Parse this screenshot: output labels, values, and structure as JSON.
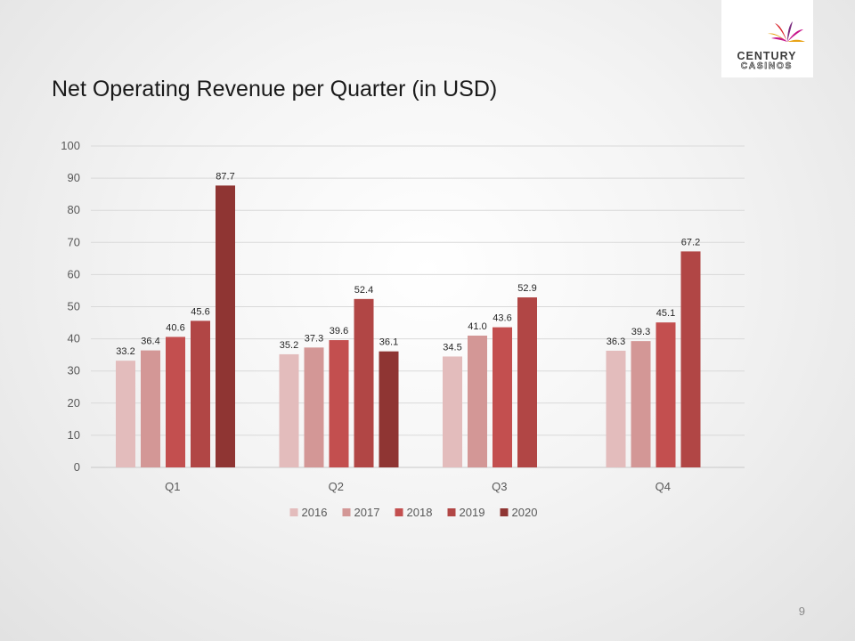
{
  "slide": {
    "title": "Net Operating Revenue per Quarter (in USD)",
    "page_number": "9"
  },
  "logo": {
    "line1": "CENTURY",
    "line2": "CASINOS",
    "colors": [
      "#e8a317",
      "#d9262e",
      "#7a2a7e",
      "#c7168c"
    ]
  },
  "chart_data": {
    "type": "bar",
    "title": "",
    "xlabel": "",
    "ylabel": "",
    "categories": [
      "Q1",
      "Q2",
      "Q3",
      "Q4"
    ],
    "series": [
      {
        "name": "2016",
        "color": "#e3bcbc",
        "values": [
          33.2,
          35.2,
          34.5,
          36.3
        ]
      },
      {
        "name": "2017",
        "color": "#d39796",
        "values": [
          36.4,
          37.3,
          41.0,
          39.3
        ]
      },
      {
        "name": "2018",
        "color": "#c34f4f",
        "values": [
          40.6,
          39.6,
          43.6,
          45.1
        ]
      },
      {
        "name": "2019",
        "color": "#b14645",
        "values": [
          45.6,
          52.4,
          52.9,
          67.2
        ]
      },
      {
        "name": "2020",
        "color": "#8f3533",
        "values": [
          87.7,
          36.1,
          null,
          null
        ]
      }
    ],
    "ylim": [
      0,
      100
    ],
    "yticks": [
      0,
      10,
      20,
      30,
      40,
      50,
      60,
      70,
      80,
      90,
      100
    ],
    "grid": true,
    "legend": "bottom",
    "data_labels": true,
    "value_format": "0.0"
  }
}
